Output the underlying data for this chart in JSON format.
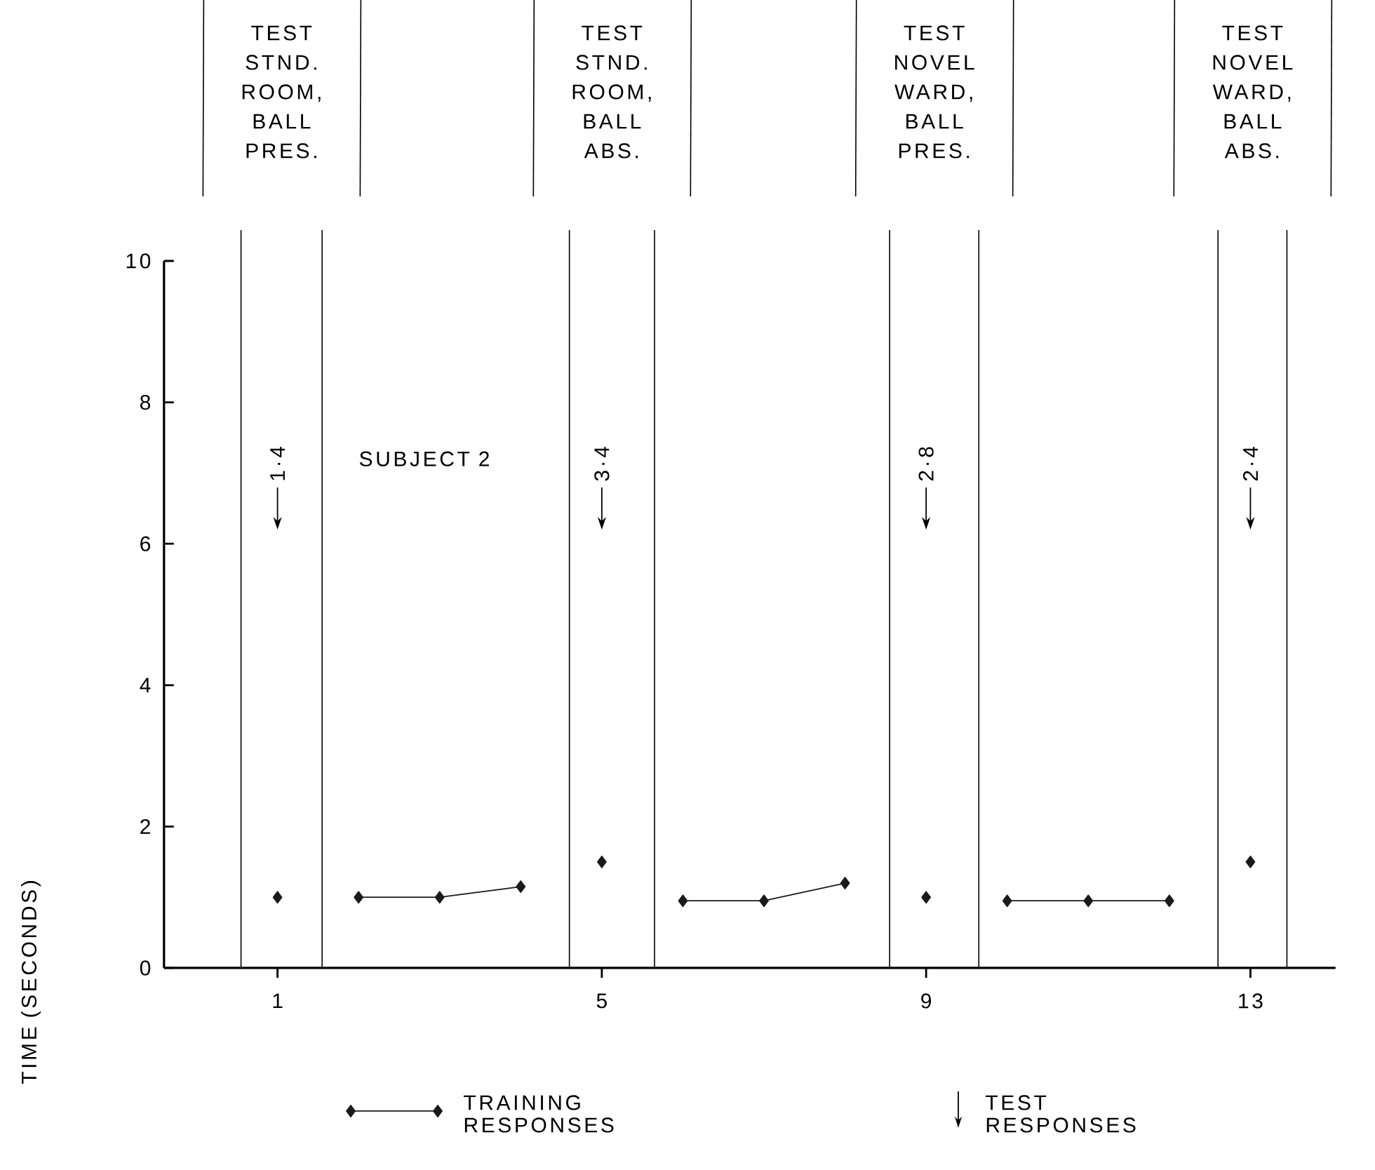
{
  "chart_data": {
    "type": "line",
    "ylabel": "TIME (SECONDS)",
    "xlim": [
      -0.4,
      14.05
    ],
    "ylim": [
      0,
      10
    ],
    "xticks": [
      1,
      5,
      9,
      13
    ],
    "yticks": [
      0,
      2,
      4,
      6,
      8,
      10
    ],
    "marker": "diamond",
    "line_style": "solid",
    "legend": "bottom",
    "series": [
      {
        "name": "TRAINING RESPONSES",
        "color": "#1a1a1a",
        "x": [
          2,
          3,
          4,
          5,
          6,
          7,
          8,
          9,
          10,
          11,
          12
        ],
        "values": [
          1.0,
          1.0,
          1.15,
          null,
          0.95,
          0.95,
          1.2,
          null,
          0.95,
          0.95,
          0.95
        ]
      },
      {
        "type": "scatter",
        "color": "#1a1a1a",
        "x": [
          1,
          5,
          9,
          13
        ],
        "values": [
          1.0,
          1.5,
          1.0,
          1.5
        ]
      }
    ],
    "ref_lines": [
      {
        "axis": "x",
        "value": 0.55
      },
      {
        "axis": "x",
        "value": 1.55
      },
      {
        "axis": "x",
        "value": 4.6
      },
      {
        "axis": "x",
        "value": 5.65
      },
      {
        "axis": "x",
        "value": 8.55
      },
      {
        "axis": "x",
        "value": 9.65
      },
      {
        "axis": "x",
        "value": 12.6
      },
      {
        "axis": "x",
        "value": 13.45
      }
    ],
    "annotations": [
      "SUBJECT 2",
      "TEST RESPONSES",
      "1·4",
      "3·4",
      "2·8",
      "2·4",
      "TEST STND. ROOM, BALL PRES.",
      "TEST STND. ROOM, BALL ABS.",
      "TEST NOVEL WARD, BALL PRES.",
      "TEST NOVEL WARD, BALL ABS."
    ]
  }
}
